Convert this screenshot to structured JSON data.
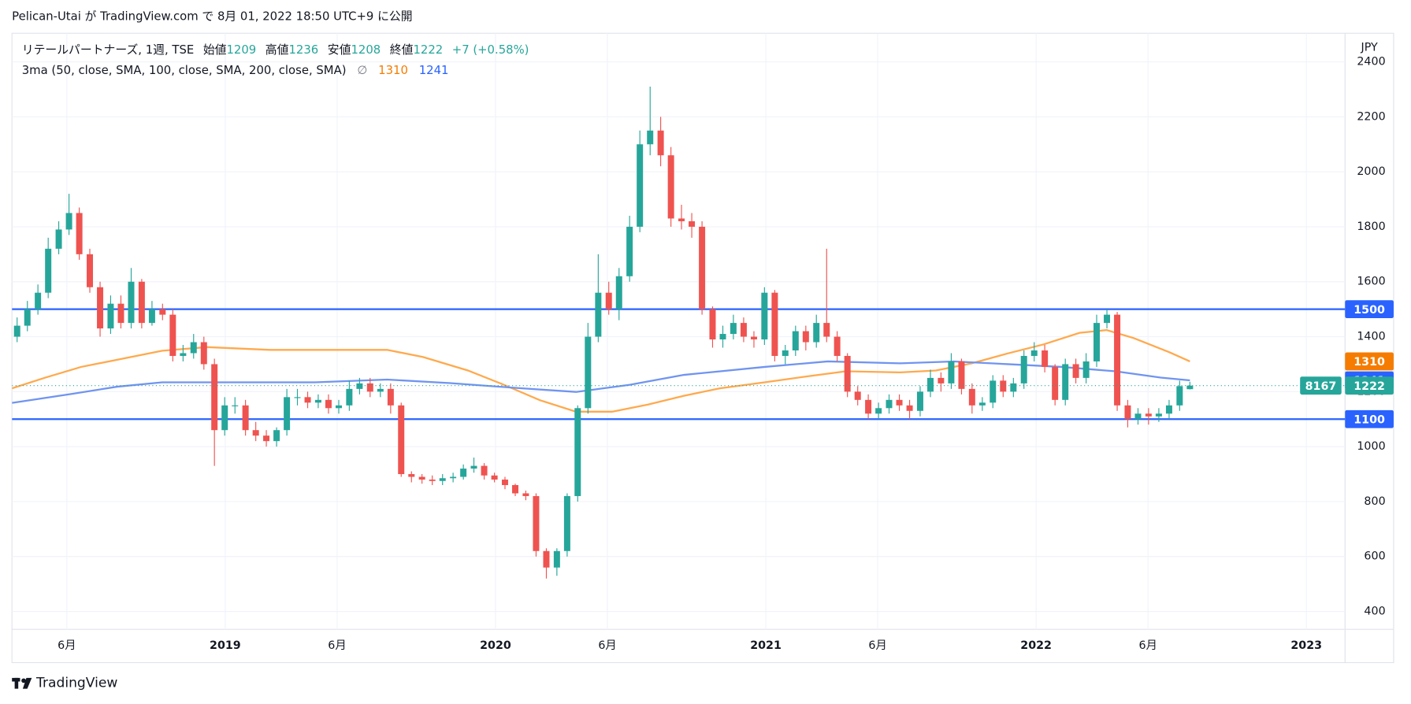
{
  "header": {
    "title": "Pelican-Utai が TradingView.com で 8月 01, 2022 18:50 UTC+9 に公開"
  },
  "footer": {
    "brand": "TradingView"
  },
  "chart_data": {
    "type": "candlestick",
    "legend": {
      "symbol": "リテールパートナーズ, 1週, TSE",
      "labels": [
        "始値",
        "高値",
        "安値",
        "終値"
      ],
      "change": "+7 (+0.58%)"
    },
    "indicator": {
      "name": "3ma (50, close, SMA, 100, close, SMA, 200, close, SMA)",
      "symbol": "∅"
    },
    "currency": "JPY",
    "countdown": "8167",
    "up_color": "#26a69a",
    "down_color": "#ef5350",
    "x": [
      2018.23,
      2018.268,
      2018.307,
      2018.345,
      2018.384,
      2018.422,
      2018.46,
      2018.499,
      2018.537,
      2018.576,
      2018.614,
      2018.652,
      2018.691,
      2018.729,
      2018.768,
      2018.806,
      2018.844,
      2018.883,
      2018.921,
      2018.96,
      2018.998,
      2019.036,
      2019.075,
      2019.113,
      2019.152,
      2019.19,
      2019.228,
      2019.267,
      2019.305,
      2019.344,
      2019.382,
      2019.42,
      2019.459,
      2019.497,
      2019.536,
      2019.574,
      2019.612,
      2019.651,
      2019.689,
      2019.728,
      2019.766,
      2019.804,
      2019.843,
      2019.881,
      2019.92,
      2019.958,
      2019.996,
      2020.035,
      2020.073,
      2020.112,
      2020.15,
      2020.188,
      2020.227,
      2020.265,
      2020.304,
      2020.342,
      2020.38,
      2020.419,
      2020.457,
      2020.496,
      2020.534,
      2020.572,
      2020.611,
      2020.649,
      2020.688,
      2020.726,
      2020.764,
      2020.803,
      2020.841,
      2020.88,
      2020.918,
      2020.956,
      2020.995,
      2021.033,
      2021.072,
      2021.11,
      2021.148,
      2021.187,
      2021.225,
      2021.264,
      2021.302,
      2021.34,
      2021.379,
      2021.417,
      2021.456,
      2021.494,
      2021.532,
      2021.571,
      2021.609,
      2021.648,
      2021.686,
      2021.724,
      2021.763,
      2021.801,
      2021.84,
      2021.878,
      2021.916,
      2021.955,
      2021.993,
      2022.032,
      2022.07,
      2022.108,
      2022.147,
      2022.185,
      2022.224,
      2022.262,
      2022.3,
      2022.339,
      2022.377,
      2022.416,
      2022.454,
      2022.492,
      2022.531,
      2022.569
    ],
    "open": [
      1400,
      1440,
      1500,
      1560,
      1720,
      1790,
      1850,
      1700,
      1580,
      1430,
      1520,
      1450,
      1600,
      1450,
      1500,
      1480,
      1330,
      1340,
      1380,
      1300,
      1060,
      1150,
      1150,
      1060,
      1040,
      1020,
      1060,
      1180,
      1180,
      1160,
      1170,
      1140,
      1150,
      1210,
      1230,
      1200,
      1210,
      1150,
      900,
      890,
      880,
      875,
      885,
      890,
      920,
      930,
      895,
      880,
      860,
      830,
      820,
      620,
      560,
      620,
      820,
      1140,
      1400,
      1560,
      1500,
      1620,
      1800,
      2100,
      2150,
      2060,
      1830,
      1820,
      1800,
      1500,
      1390,
      1410,
      1450,
      1400,
      1390,
      1560,
      1330,
      1350,
      1420,
      1380,
      1450,
      1400,
      1330,
      1200,
      1170,
      1120,
      1140,
      1170,
      1150,
      1130,
      1200,
      1250,
      1230,
      1310,
      1210,
      1150,
      1160,
      1240,
      1200,
      1230,
      1330,
      1350,
      1290,
      1170,
      1300,
      1250,
      1310,
      1450,
      1480,
      1150,
      1100,
      1120,
      1110,
      1120,
      1150,
      1209
    ],
    "high": [
      1470,
      1530,
      1590,
      1760,
      1820,
      1920,
      1870,
      1720,
      1600,
      1550,
      1550,
      1650,
      1610,
      1530,
      1520,
      1500,
      1370,
      1410,
      1400,
      1320,
      1180,
      1180,
      1170,
      1090,
      1060,
      1070,
      1210,
      1210,
      1200,
      1190,
      1190,
      1170,
      1240,
      1250,
      1250,
      1230,
      1230,
      1160,
      910,
      900,
      895,
      900,
      905,
      935,
      960,
      940,
      905,
      890,
      865,
      840,
      830,
      630,
      630,
      830,
      1150,
      1450,
      1700,
      1600,
      1650,
      1840,
      2150,
      2310,
      2200,
      2090,
      1880,
      1850,
      1820,
      1510,
      1440,
      1480,
      1470,
      1420,
      1580,
      1570,
      1370,
      1440,
      1440,
      1480,
      1720,
      1420,
      1340,
      1220,
      1190,
      1160,
      1190,
      1190,
      1170,
      1220,
      1280,
      1270,
      1340,
      1320,
      1230,
      1180,
      1260,
      1260,
      1250,
      1350,
      1380,
      1370,
      1300,
      1320,
      1320,
      1340,
      1480,
      1500,
      1490,
      1170,
      1140,
      1140,
      1140,
      1170,
      1240,
      1236
    ],
    "low": [
      1380,
      1420,
      1480,
      1540,
      1700,
      1770,
      1680,
      1560,
      1400,
      1410,
      1430,
      1430,
      1430,
      1440,
      1460,
      1310,
      1310,
      1320,
      1280,
      930,
      1040,
      1120,
      1040,
      1020,
      1000,
      1000,
      1040,
      1150,
      1140,
      1140,
      1120,
      1120,
      1130,
      1190,
      1180,
      1180,
      1120,
      890,
      870,
      865,
      860,
      860,
      870,
      880,
      905,
      880,
      870,
      845,
      820,
      805,
      600,
      520,
      530,
      600,
      800,
      1120,
      1380,
      1480,
      1460,
      1600,
      1780,
      2060,
      2020,
      1800,
      1790,
      1760,
      1480,
      1360,
      1360,
      1390,
      1380,
      1360,
      1370,
      1310,
      1300,
      1330,
      1350,
      1360,
      1380,
      1310,
      1180,
      1150,
      1100,
      1100,
      1120,
      1130,
      1100,
      1110,
      1180,
      1200,
      1210,
      1190,
      1120,
      1130,
      1140,
      1180,
      1180,
      1210,
      1310,
      1270,
      1150,
      1150,
      1230,
      1230,
      1290,
      1430,
      1130,
      1070,
      1080,
      1080,
      1090,
      1100,
      1130,
      1208
    ],
    "close": [
      1440,
      1500,
      1560,
      1720,
      1790,
      1850,
      1700,
      1580,
      1430,
      1520,
      1450,
      1600,
      1450,
      1500,
      1480,
      1330,
      1340,
      1380,
      1300,
      1060,
      1150,
      1150,
      1060,
      1040,
      1020,
      1060,
      1180,
      1180,
      1160,
      1170,
      1140,
      1150,
      1210,
      1230,
      1200,
      1210,
      1150,
      900,
      890,
      880,
      875,
      885,
      890,
      920,
      930,
      895,
      880,
      860,
      830,
      820,
      620,
      560,
      620,
      820,
      1140,
      1400,
      1560,
      1500,
      1620,
      1800,
      2100,
      2150,
      2060,
      1830,
      1820,
      1800,
      1500,
      1390,
      1410,
      1450,
      1400,
      1390,
      1560,
      1330,
      1350,
      1420,
      1380,
      1450,
      1400,
      1330,
      1200,
      1170,
      1120,
      1140,
      1170,
      1150,
      1130,
      1200,
      1250,
      1230,
      1310,
      1210,
      1150,
      1160,
      1240,
      1200,
      1230,
      1330,
      1350,
      1290,
      1170,
      1300,
      1250,
      1310,
      1450,
      1480,
      1150,
      1100,
      1120,
      1110,
      1120,
      1150,
      1220,
      1222
    ],
    "series": [
      {
        "color": "#ffa94d",
        "label_color": "#f57c00",
        "x": [
          2018.211,
          2018.334,
          2018.467,
          2018.6,
          2018.767,
          2018.933,
          2019.166,
          2019.599,
          2019.732,
          2019.898,
          2020.031,
          2020.164,
          2020.298,
          2020.431,
          2020.564,
          2020.697,
          2020.83,
          2020.996,
          2021.163,
          2021.296,
          2021.495,
          2021.629,
          2021.762,
          2021.895,
          2022.028,
          2022.161,
          2022.261,
          2022.361,
          2022.494,
          2022.569
        ],
        "values": [
          1212,
          1251,
          1290,
          1316,
          1349,
          1362,
          1352,
          1352,
          1326,
          1277,
          1225,
          1169,
          1127,
          1127,
          1153,
          1185,
          1212,
          1234,
          1257,
          1274,
          1270,
          1277,
          1303,
          1339,
          1372,
          1414,
          1424,
          1395,
          1343,
          1310
        ]
      },
      {
        "color": "#7094f0",
        "label_color": "#2962ff",
        "x": [
          2018.211,
          2018.434,
          2018.6,
          2018.767,
          2019.0,
          2019.332,
          2019.599,
          2019.832,
          2020.098,
          2020.298,
          2020.497,
          2020.697,
          2020.996,
          2021.229,
          2021.495,
          2021.695,
          2021.895,
          2022.094,
          2022.294,
          2022.461,
          2022.569
        ],
        "values": [
          1159,
          1192,
          1218,
          1234,
          1234,
          1234,
          1244,
          1231,
          1212,
          1199,
          1225,
          1261,
          1290,
          1310,
          1303,
          1310,
          1300,
          1290,
          1274,
          1251,
          1241
        ]
      }
    ],
    "hlines": [
      {
        "value": 1500,
        "color": "#2962ff"
      },
      {
        "value": 1100,
        "color": "#2962ff"
      }
    ],
    "ylim": [
      335,
      2504
    ],
    "yticks": [
      400,
      600,
      800,
      1000,
      1200,
      1400,
      1600,
      1800,
      2000,
      2200,
      2400
    ],
    "xlim": [
      2018.211,
      2023.143
    ],
    "xticks": [
      {
        "value": 2018.414,
        "label": "6月"
      },
      2019,
      {
        "value": 2019.414,
        "label": "6月"
      },
      2020,
      {
        "value": 2020.414,
        "label": "6月"
      },
      2021,
      {
        "value": 2021.414,
        "label": "6月"
      },
      2022,
      {
        "value": 2022.414,
        "label": "6月"
      },
      2023
    ],
    "grid": true
  }
}
